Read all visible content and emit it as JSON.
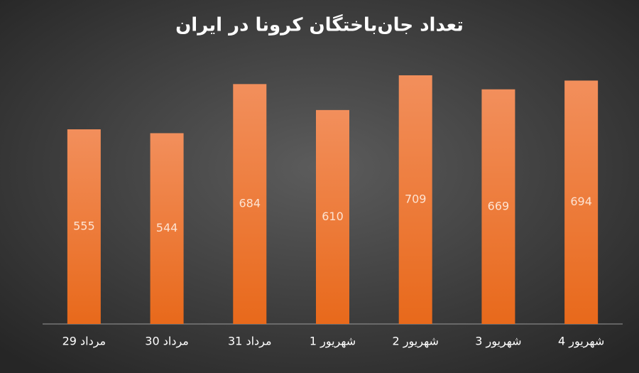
{
  "chart_data": {
    "type": "bar",
    "title": "تعداد جان‌باختگان کرونا در ایران",
    "categories": [
      "29 مرداد",
      "30 مرداد",
      "31 مرداد",
      "1 شهریور",
      "2 شهریور",
      "3 شهریور",
      "4 شهریور"
    ],
    "values": [
      555,
      544,
      684,
      610,
      709,
      669,
      694
    ],
    "color": "#ec7a35"
  }
}
